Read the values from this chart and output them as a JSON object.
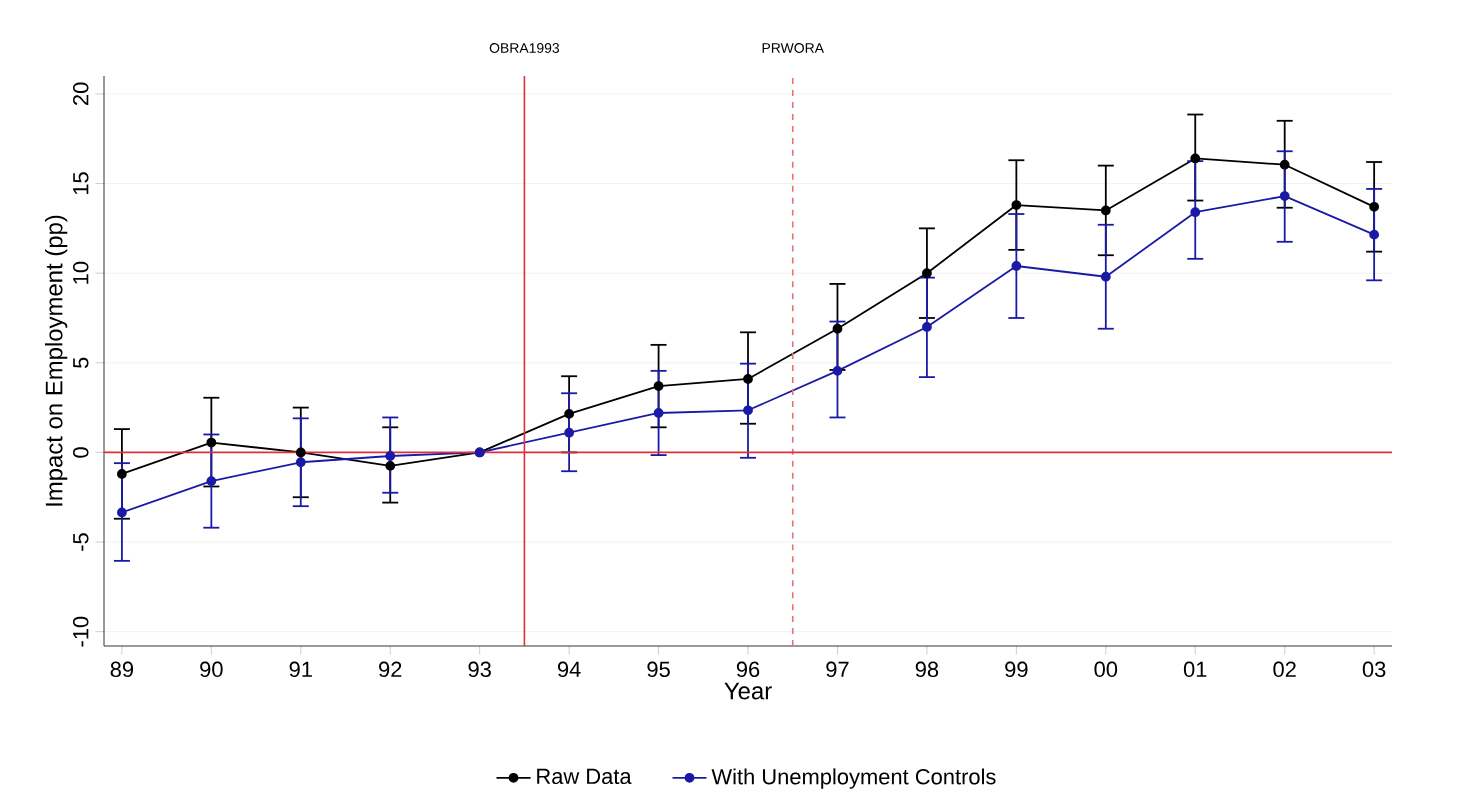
{
  "chart_data": {
    "type": "line",
    "xlabel": "Year",
    "ylabel": "Impact on Employment (pp)",
    "x": [
      1989,
      1990,
      1991,
      1992,
      1993,
      1994,
      1995,
      1996,
      1997,
      1998,
      1999,
      2000,
      2001,
      2002,
      2003
    ],
    "series": [
      {
        "name": "Raw Data",
        "color": "#000000",
        "values": [
          -1.2,
          0.55,
          0,
          -0.75,
          0,
          2.15,
          3.7,
          4.1,
          6.9,
          10.0,
          13.8,
          13.5,
          16.4,
          16.05,
          13.7
        ],
        "errors": [
          [
            -3.7,
            1.3
          ],
          [
            -1.9,
            3.05
          ],
          [
            -2.5,
            2.5
          ],
          [
            -2.8,
            1.4
          ],
          null,
          [
            0,
            4.25
          ],
          [
            1.4,
            6.0
          ],
          [
            1.6,
            6.7
          ],
          [
            4.6,
            9.4
          ],
          [
            7.5,
            12.5
          ],
          [
            11.3,
            16.3
          ],
          [
            11.0,
            16.0
          ],
          [
            14.05,
            18.85
          ],
          [
            13.65,
            18.5
          ],
          [
            11.2,
            16.2
          ]
        ]
      },
      {
        "name": "With Unemployment Controls",
        "color": "#1a1aa6",
        "values": [
          -3.35,
          -1.6,
          -0.55,
          -0.2,
          0,
          1.1,
          2.2,
          2.35,
          4.55,
          7.0,
          10.4,
          9.8,
          13.4,
          14.3,
          12.15
        ],
        "errors": [
          [
            -6.05,
            -0.6
          ],
          [
            -4.2,
            1.0
          ],
          [
            -3.0,
            1.9
          ],
          [
            -2.25,
            1.95
          ],
          null,
          [
            -1.05,
            3.3
          ],
          [
            -0.15,
            4.55
          ],
          [
            -0.3,
            4.95
          ],
          [
            1.95,
            7.3
          ],
          [
            4.2,
            9.75
          ],
          [
            7.5,
            13.3
          ],
          [
            6.9,
            12.7
          ],
          [
            10.8,
            16.25
          ],
          [
            11.75,
            16.8
          ],
          [
            9.6,
            14.7
          ]
        ]
      }
    ],
    "xlim": [
      1988.8,
      2003.2
    ],
    "ylim": [
      -10.8,
      21
    ],
    "xticks": [
      {
        "value": 1989,
        "label": "89"
      },
      {
        "value": 1990,
        "label": "90"
      },
      {
        "value": 1991,
        "label": "91"
      },
      {
        "value": 1992,
        "label": "92"
      },
      {
        "value": 1993,
        "label": "93"
      },
      {
        "value": 1994,
        "label": "94"
      },
      {
        "value": 1995,
        "label": "95"
      },
      {
        "value": 1996,
        "label": "96"
      },
      {
        "value": 1997,
        "label": "97"
      },
      {
        "value": 1998,
        "label": "98"
      },
      {
        "value": 1999,
        "label": "99"
      },
      {
        "value": 2000,
        "label": "00"
      },
      {
        "value": 2001,
        "label": "01"
      },
      {
        "value": 2002,
        "label": "02"
      },
      {
        "value": 2003,
        "label": "03"
      }
    ],
    "yticks": [
      -10,
      -5,
      0,
      5,
      10,
      15,
      20
    ],
    "ref_lines": [
      {
        "axis": "x",
        "value": 1993.5,
        "label": "OBRA1993",
        "color": "#e0303a",
        "line_style": "solid"
      },
      {
        "axis": "x",
        "value": 1996.5,
        "label": "PRWORA",
        "color": "#e87078",
        "line_style": "dashed"
      },
      {
        "axis": "y",
        "value": 0,
        "label": null,
        "color": "#e0303a",
        "line_style": "solid"
      }
    ],
    "grid": "y",
    "legend": "bottom",
    "marker": "circle",
    "line_style": "solid"
  }
}
